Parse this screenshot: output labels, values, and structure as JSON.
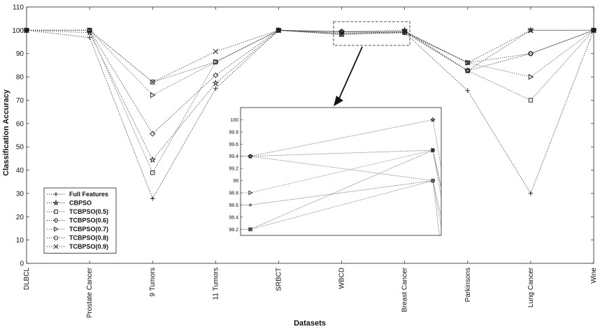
{
  "chart_data": {
    "type": "line",
    "title": "",
    "xlabel": "Datasets",
    "ylabel": "Classification Accuracy",
    "ylim": [
      0,
      110
    ],
    "yticks": [
      0,
      10,
      20,
      30,
      40,
      50,
      60,
      70,
      80,
      90,
      100,
      110
    ],
    "grid": false,
    "legend_position": "bottom-left",
    "categories": [
      "DLBCL",
      "Prostate Cancer",
      "9 Tumors",
      "11 Tumors",
      "SRBCT",
      "WBCD",
      "Breast Cancer",
      "Parkinsons",
      "Lung Cancer",
      "Wine"
    ],
    "series": [
      {
        "name": "Full Features",
        "marker": "plus",
        "values": [
          100,
          96.9,
          27.8,
          75.0,
          100,
          98.6,
          99.0,
          74.1,
          30.0,
          100
        ]
      },
      {
        "name": "CBPSO",
        "marker": "star",
        "values": [
          100,
          99.0,
          44.4,
          77.3,
          100,
          99.4,
          100.0,
          82.7,
          100.0,
          100
        ]
      },
      {
        "name": "TCBPSO(0.5)",
        "marker": "square",
        "values": [
          100,
          100.0,
          38.9,
          86.4,
          100,
          98.2,
          99.0,
          82.7,
          70.0,
          100
        ]
      },
      {
        "name": "TCBPSO(0.6)",
        "marker": "diamond",
        "values": [
          100,
          100.0,
          55.6,
          80.7,
          100,
          99.4,
          99.5,
          82.7,
          90.0,
          100
        ]
      },
      {
        "name": "TCBPSO(0.7)",
        "marker": "triangle-right",
        "values": [
          100,
          100.0,
          72.2,
          86.4,
          100,
          98.8,
          99.5,
          86.1,
          80.0,
          100
        ]
      },
      {
        "name": "TCBPSO(0.8)",
        "marker": "circle",
        "values": [
          100,
          100.0,
          77.8,
          86.4,
          100,
          99.4,
          99.0,
          86.1,
          90.0,
          100
        ]
      },
      {
        "name": "TCBPSO(0.9)",
        "marker": "x",
        "values": [
          100,
          100.0,
          77.8,
          90.9,
          100,
          98.2,
          99.5,
          86.1,
          100.0,
          100
        ]
      }
    ],
    "inset": {
      "source_categories": [
        "WBCD",
        "Breast Cancer"
      ],
      "ylim": [
        98.1,
        100.2
      ],
      "yticks": [
        98.2,
        98.4,
        98.6,
        98.8,
        99,
        99.2,
        99.4,
        99.6,
        99.8,
        100
      ],
      "ytick_labels": [
        "98.2",
        "98.4",
        "98.6",
        "98.8",
        "99",
        "99.2",
        "99.4",
        "99.6",
        "99.8",
        "100"
      ],
      "annotation": "zoom box with arrow"
    }
  }
}
